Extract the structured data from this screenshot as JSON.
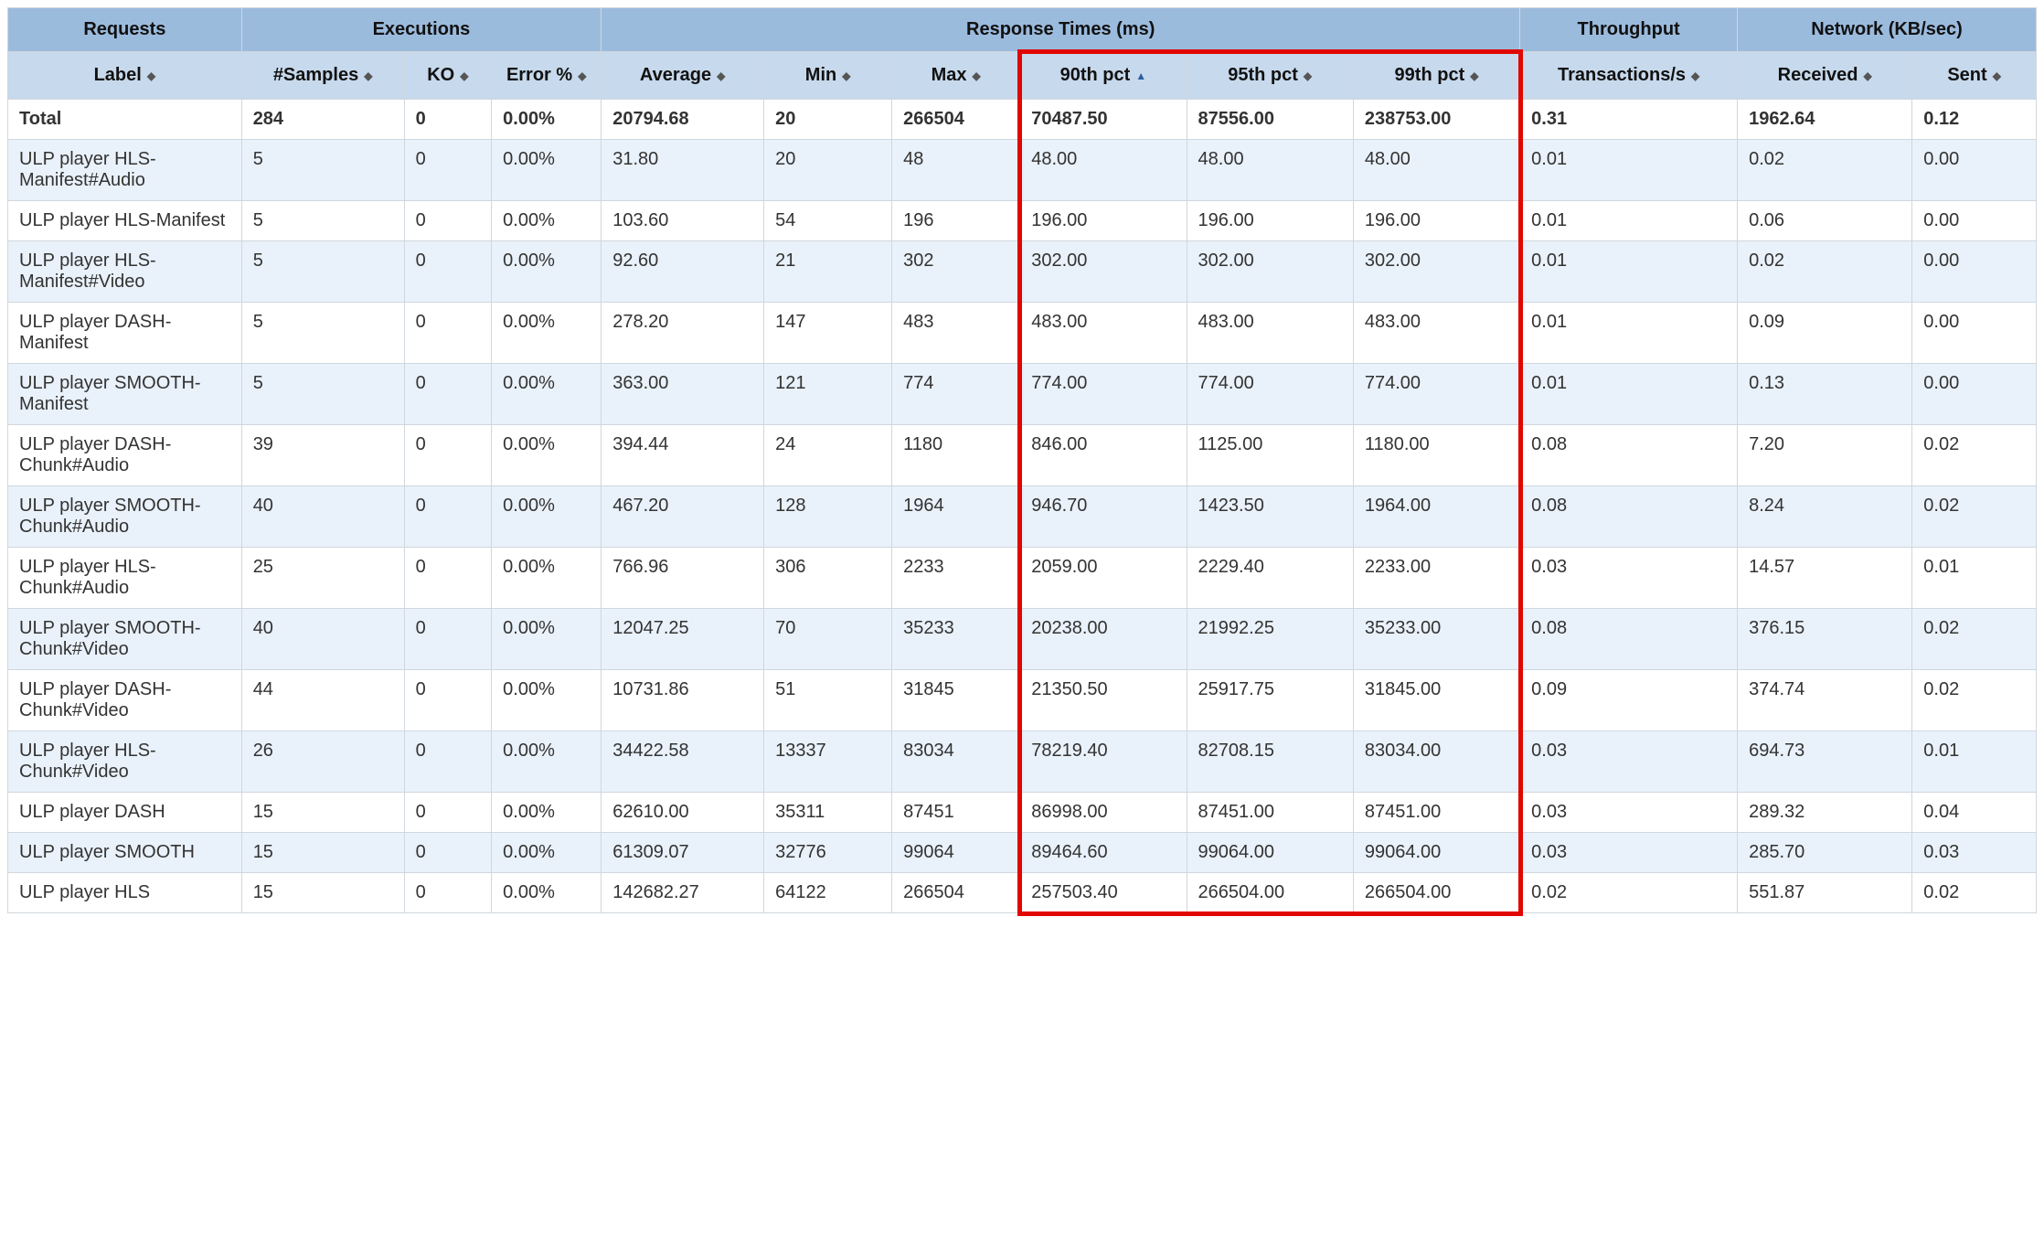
{
  "colors": {
    "header_group_bg": "#9bbbdd",
    "header_col_bg": "#c7d9ec",
    "row_odd_bg": "#e9f1fa",
    "row_even_bg": "#ffffff",
    "border": "#d0d7de",
    "highlight_border": "#e10600",
    "text": "#333333"
  },
  "header_groups": [
    {
      "label": "Requests",
      "span": 1
    },
    {
      "label": "Executions",
      "span": 3
    },
    {
      "label": "Response Times (ms)",
      "span": 6
    },
    {
      "label": "Throughput",
      "span": 1
    },
    {
      "label": "Network (KB/sec)",
      "span": 2
    }
  ],
  "columns": [
    {
      "key": "label",
      "label": "Label",
      "sort": "both"
    },
    {
      "key": "samples",
      "label": "#Samples",
      "sort": "both"
    },
    {
      "key": "ko",
      "label": "KO",
      "sort": "both"
    },
    {
      "key": "err",
      "label": "Error %",
      "sort": "both"
    },
    {
      "key": "avg",
      "label": "Average",
      "sort": "both"
    },
    {
      "key": "min",
      "label": "Min",
      "sort": "both"
    },
    {
      "key": "max",
      "label": "Max",
      "sort": "both"
    },
    {
      "key": "p90",
      "label": "90th pct",
      "sort": "asc"
    },
    {
      "key": "p95",
      "label": "95th pct",
      "sort": "both"
    },
    {
      "key": "p99",
      "label": "99th pct",
      "sort": "both"
    },
    {
      "key": "tps",
      "label": "Transactions/s",
      "sort": "both"
    },
    {
      "key": "recv",
      "label": "Received",
      "sort": "both"
    },
    {
      "key": "sent",
      "label": "Sent",
      "sort": "both"
    }
  ],
  "total_row": {
    "label": "Total",
    "samples": "284",
    "ko": "0",
    "err": "0.00%",
    "avg": "20794.68",
    "min": "20",
    "max": "266504",
    "p90": "70487.50",
    "p95": "87556.00",
    "p99": "238753.00",
    "tps": "0.31",
    "recv": "1962.64",
    "sent": "0.12"
  },
  "rows": [
    {
      "label": "ULP player HLS-Manifest#Audio",
      "samples": "5",
      "ko": "0",
      "err": "0.00%",
      "avg": "31.80",
      "min": "20",
      "max": "48",
      "p90": "48.00",
      "p95": "48.00",
      "p99": "48.00",
      "tps": "0.01",
      "recv": "0.02",
      "sent": "0.00"
    },
    {
      "label": "ULP player HLS-Manifest",
      "samples": "5",
      "ko": "0",
      "err": "0.00%",
      "avg": "103.60",
      "min": "54",
      "max": "196",
      "p90": "196.00",
      "p95": "196.00",
      "p99": "196.00",
      "tps": "0.01",
      "recv": "0.06",
      "sent": "0.00"
    },
    {
      "label": "ULP player HLS-Manifest#Video",
      "samples": "5",
      "ko": "0",
      "err": "0.00%",
      "avg": "92.60",
      "min": "21",
      "max": "302",
      "p90": "302.00",
      "p95": "302.00",
      "p99": "302.00",
      "tps": "0.01",
      "recv": "0.02",
      "sent": "0.00"
    },
    {
      "label": "ULP player DASH-Manifest",
      "samples": "5",
      "ko": "0",
      "err": "0.00%",
      "avg": "278.20",
      "min": "147",
      "max": "483",
      "p90": "483.00",
      "p95": "483.00",
      "p99": "483.00",
      "tps": "0.01",
      "recv": "0.09",
      "sent": "0.00"
    },
    {
      "label": "ULP player SMOOTH-Manifest",
      "samples": "5",
      "ko": "0",
      "err": "0.00%",
      "avg": "363.00",
      "min": "121",
      "max": "774",
      "p90": "774.00",
      "p95": "774.00",
      "p99": "774.00",
      "tps": "0.01",
      "recv": "0.13",
      "sent": "0.00"
    },
    {
      "label": "ULP player DASH-Chunk#Audio",
      "samples": "39",
      "ko": "0",
      "err": "0.00%",
      "avg": "394.44",
      "min": "24",
      "max": "1180",
      "p90": "846.00",
      "p95": "1125.00",
      "p99": "1180.00",
      "tps": "0.08",
      "recv": "7.20",
      "sent": "0.02"
    },
    {
      "label": "ULP player SMOOTH-Chunk#Audio",
      "samples": "40",
      "ko": "0",
      "err": "0.00%",
      "avg": "467.20",
      "min": "128",
      "max": "1964",
      "p90": "946.70",
      "p95": "1423.50",
      "p99": "1964.00",
      "tps": "0.08",
      "recv": "8.24",
      "sent": "0.02"
    },
    {
      "label": "ULP player HLS-Chunk#Audio",
      "samples": "25",
      "ko": "0",
      "err": "0.00%",
      "avg": "766.96",
      "min": "306",
      "max": "2233",
      "p90": "2059.00",
      "p95": "2229.40",
      "p99": "2233.00",
      "tps": "0.03",
      "recv": "14.57",
      "sent": "0.01"
    },
    {
      "label": "ULP player SMOOTH-Chunk#Video",
      "samples": "40",
      "ko": "0",
      "err": "0.00%",
      "avg": "12047.25",
      "min": "70",
      "max": "35233",
      "p90": "20238.00",
      "p95": "21992.25",
      "p99": "35233.00",
      "tps": "0.08",
      "recv": "376.15",
      "sent": "0.02"
    },
    {
      "label": "ULP player DASH-Chunk#Video",
      "samples": "44",
      "ko": "0",
      "err": "0.00%",
      "avg": "10731.86",
      "min": "51",
      "max": "31845",
      "p90": "21350.50",
      "p95": "25917.75",
      "p99": "31845.00",
      "tps": "0.09",
      "recv": "374.74",
      "sent": "0.02"
    },
    {
      "label": "ULP player HLS-Chunk#Video",
      "samples": "26",
      "ko": "0",
      "err": "0.00%",
      "avg": "34422.58",
      "min": "13337",
      "max": "83034",
      "p90": "78219.40",
      "p95": "82708.15",
      "p99": "83034.00",
      "tps": "0.03",
      "recv": "694.73",
      "sent": "0.01"
    },
    {
      "label": "ULP player DASH",
      "samples": "15",
      "ko": "0",
      "err": "0.00%",
      "avg": "62610.00",
      "min": "35311",
      "max": "87451",
      "p90": "86998.00",
      "p95": "87451.00",
      "p99": "87451.00",
      "tps": "0.03",
      "recv": "289.32",
      "sent": "0.04"
    },
    {
      "label": "ULP player SMOOTH",
      "samples": "15",
      "ko": "0",
      "err": "0.00%",
      "avg": "61309.07",
      "min": "32776",
      "max": "99064",
      "p90": "89464.60",
      "p95": "99064.00",
      "p99": "99064.00",
      "tps": "0.03",
      "recv": "285.70",
      "sent": "0.03"
    },
    {
      "label": "ULP player HLS",
      "samples": "15",
      "ko": "0",
      "err": "0.00%",
      "avg": "142682.27",
      "min": "64122",
      "max": "266504",
      "p90": "257503.40",
      "p95": "266504.00",
      "p99": "266504.00",
      "tps": "0.02",
      "recv": "551.87",
      "sent": "0.02"
    }
  ],
  "highlight": {
    "start_col_key": "p90",
    "end_col_key": "p99",
    "include_col_header": true
  }
}
